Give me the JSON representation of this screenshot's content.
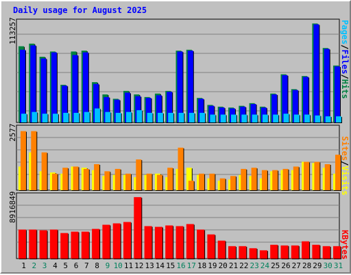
{
  "title": "Daily usage for August 2025",
  "colors": {
    "hits": "#008040",
    "files": "#0000ff",
    "pages": "#00c0ff",
    "visits": "#ffff00",
    "sites": "#ff8000",
    "kbytes": "#ff0000",
    "weekday": "#000000",
    "weekend": "#00805c"
  },
  "chart_data": [
    {
      "type": "bar",
      "panel": "top",
      "ylabel": "113257",
      "ylim": [
        0,
        113257
      ],
      "legend": [
        "Pages",
        "/",
        "Files",
        "/",
        "Hits"
      ],
      "categories": [
        "1",
        "2",
        "3",
        "4",
        "5",
        "6",
        "7",
        "8",
        "9",
        "10",
        "11",
        "12",
        "13",
        "14",
        "15",
        "16",
        "17",
        "18",
        "19",
        "20",
        "21",
        "22",
        "23",
        "24",
        "25",
        "26",
        "27",
        "28",
        "29",
        "30",
        "31"
      ],
      "series": [
        {
          "name": "Hits",
          "values": [
            87000,
            90000,
            75000,
            81000,
            43000,
            81000,
            82000,
            46000,
            32000,
            27000,
            36000,
            32000,
            29000,
            33000,
            36000,
            82000,
            83000,
            28000,
            20000,
            18000,
            17000,
            19000,
            22000,
            18000,
            33000,
            55000,
            38000,
            53000,
            113000,
            85000,
            65000
          ]
        },
        {
          "name": "Files",
          "values": [
            83000,
            88000,
            73000,
            80000,
            42000,
            77000,
            80000,
            44000,
            29000,
            26000,
            34000,
            30000,
            28000,
            31000,
            35000,
            81000,
            82000,
            27000,
            19000,
            17000,
            16000,
            18000,
            21000,
            17000,
            32000,
            54000,
            37000,
            52000,
            112000,
            84000,
            64000
          ]
        },
        {
          "name": "Pages",
          "values": [
            10000,
            12000,
            10000,
            10000,
            11000,
            11000,
            12000,
            16000,
            12000,
            11000,
            12000,
            14000,
            11000,
            11000,
            11000,
            11000,
            11000,
            11000,
            9000,
            9000,
            9000,
            9000,
            9000,
            9000,
            9000,
            10000,
            9000,
            9000,
            8000,
            7000,
            7000
          ]
        }
      ]
    },
    {
      "type": "bar",
      "panel": "middle",
      "ylabel": "2577",
      "ylim": [
        0,
        2577
      ],
      "legend": [
        "Sites",
        "/",
        "Visits"
      ],
      "categories": [
        "1",
        "2",
        "3",
        "4",
        "5",
        "6",
        "7",
        "8",
        "9",
        "10",
        "11",
        "12",
        "13",
        "14",
        "15",
        "16",
        "17",
        "18",
        "19",
        "20",
        "21",
        "22",
        "23",
        "24",
        "25",
        "26",
        "27",
        "28",
        "29",
        "30",
        "31"
      ],
      "series": [
        {
          "name": "Visits",
          "values": [
            1000,
            1600,
            800,
            750,
            700,
            1000,
            950,
            850,
            600,
            650,
            650,
            550,
            650,
            700,
            550,
            900,
            950,
            650,
            500,
            400,
            450,
            650,
            600,
            500,
            800,
            850,
            850,
            1200,
            1150,
            950,
            700
          ]
        },
        {
          "name": "Sites",
          "values": [
            2500,
            2500,
            1600,
            700,
            950,
            1000,
            900,
            1100,
            800,
            900,
            700,
            1300,
            700,
            650,
            950,
            1800,
            400,
            700,
            700,
            500,
            600,
            900,
            950,
            850,
            850,
            900,
            1000,
            1200,
            1200,
            1100,
            1500
          ]
        }
      ]
    },
    {
      "type": "bar",
      "panel": "bottom",
      "ylabel": "8916849",
      "ylim": [
        0,
        8916849
      ],
      "legend": [
        "KBytes"
      ],
      "categories": [
        "1",
        "2",
        "3",
        "4",
        "5",
        "6",
        "7",
        "8",
        "9",
        "10",
        "11",
        "12",
        "13",
        "14",
        "15",
        "16",
        "17",
        "18",
        "19",
        "20",
        "21",
        "22",
        "23",
        "24",
        "25",
        "26",
        "27",
        "28",
        "29",
        "30",
        "31"
      ],
      "series": [
        {
          "name": "KBytes",
          "values": [
            4200000,
            4200000,
            4100000,
            4200000,
            3700000,
            3900000,
            3900000,
            4300000,
            4900000,
            5100000,
            5300000,
            8900000,
            4700000,
            4600000,
            4800000,
            4700000,
            5000000,
            4200000,
            3500000,
            2600000,
            1800000,
            1800000,
            1500000,
            1200000,
            2000000,
            1900000,
            1900000,
            2500000,
            2000000,
            1800000,
            1800000
          ]
        }
      ]
    }
  ],
  "days": [
    "1",
    "2",
    "3",
    "4",
    "5",
    "6",
    "7",
    "8",
    "9",
    "10",
    "11",
    "12",
    "13",
    "14",
    "15",
    "16",
    "17",
    "18",
    "19",
    "20",
    "21",
    "22",
    "23",
    "24",
    "25",
    "26",
    "27",
    "28",
    "29",
    "30",
    "31"
  ],
  "weekend_days": [
    "2",
    "3",
    "9",
    "10",
    "16",
    "17",
    "23",
    "24",
    "30",
    "31"
  ]
}
